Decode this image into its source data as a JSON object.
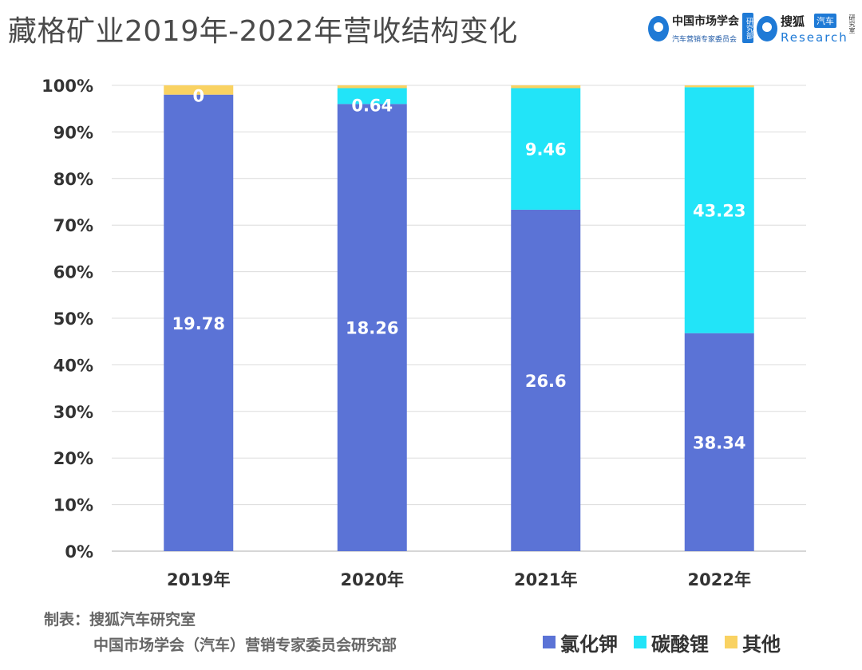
{
  "title": "藏格矿业2019年-2022年营收结构变化",
  "logos": {
    "csma": {
      "name": "中国市场学会",
      "badge": "研究部",
      "sub": "汽车营销专家委员会",
      "icon": "q-circle-logo-icon",
      "color": "#1f7ad6"
    },
    "sohu": {
      "name": "搜狐",
      "badge": "汽车",
      "sub": "Research",
      "side": "研究室",
      "icon": "q-circle-logo-icon",
      "color": "#1f7ad6"
    }
  },
  "footer": {
    "made_by": "制表：搜狐汽车研究室",
    "source": "中国市场学会（汽车）营销专家委员会研究部"
  },
  "chart_data": {
    "type": "bar",
    "stacked": true,
    "percent_stacked": true,
    "categories": [
      "2019年",
      "2020年",
      "2021年",
      "2022年"
    ],
    "series": [
      {
        "name": "氯化钾",
        "color": "#5b73d6",
        "values": [
          19.78,
          18.26,
          26.6,
          38.34
        ],
        "labels": [
          "19.78",
          "18.26",
          "26.6",
          "38.34"
        ],
        "percent": [
          98,
          96,
          73.3,
          46.8
        ]
      },
      {
        "name": "碳酸锂",
        "color": "#22e4f8",
        "values": [
          0,
          0.64,
          9.46,
          43.23
        ],
        "labels": [
          "0",
          "0.64",
          "9.46",
          "43.23"
        ],
        "percent": [
          0,
          3.4,
          26.1,
          52.8
        ]
      },
      {
        "name": "其他",
        "color": "#f9d262",
        "values": [
          null,
          null,
          null,
          null
        ],
        "labels": [],
        "percent": [
          2,
          0.6,
          0.6,
          0.4
        ]
      }
    ],
    "y_ticks": [
      "0%",
      "10%",
      "20%",
      "30%",
      "40%",
      "50%",
      "60%",
      "70%",
      "80%",
      "90%",
      "100%"
    ],
    "ylim": [
      0,
      100
    ],
    "grid": true,
    "legend_position": "bottom-right",
    "data_label_color": "#ffffff"
  }
}
